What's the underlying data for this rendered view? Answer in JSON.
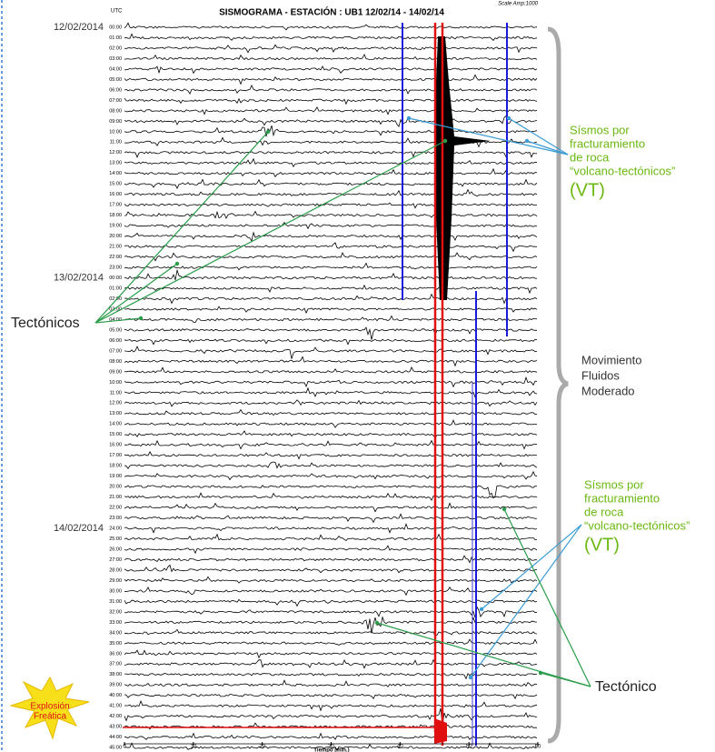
{
  "header": {
    "title": "SISMOGRAMA - ESTACIÓN : UB1 12/02/14 - 14/02/14",
    "scale": "Scale Amp:1000",
    "utc": "UTC"
  },
  "dates": [
    "12/02/2014",
    "13/02/2014",
    "14/02/2014"
  ],
  "rows": [
    "00:00",
    "01:00",
    "02:00",
    "03:00",
    "04:00",
    "05:00",
    "06:00",
    "07:00",
    "08:00",
    "09:00",
    "10:00",
    "11:00",
    "12:00",
    "13:00",
    "14:00",
    "15:00",
    "16:00",
    "17:00",
    "18:00",
    "19:00",
    "20:00",
    "21:00",
    "22:00",
    "23:00",
    "00:00",
    "01:00",
    "02:00",
    "03:00",
    "04:00",
    "05:00",
    "06:00",
    "07:00",
    "08:00",
    "09:00",
    "10:00",
    "11:00",
    "12:00",
    "13:00",
    "14:00",
    "15:00",
    "16:00",
    "17:00",
    "18:00",
    "19:00",
    "20:00",
    "21:00",
    "22:00",
    "23:00",
    "24:00",
    "25:00",
    "26:00",
    "27:00",
    "28:00",
    "29:00",
    "30:00",
    "31:00",
    "32:00",
    "33:00",
    "34:00",
    "35:00",
    "36:00",
    "37:00",
    "38:00",
    "39:00",
    "40:00",
    "41:00",
    "42:00",
    "43:00",
    "44:00",
    "45:00"
  ],
  "x_ticks": [
    0,
    10,
    20,
    30,
    40,
    50,
    60
  ],
  "x_label": "Tiempo (min.)",
  "annotations": {
    "vt_upper": [
      "Sísmos por",
      "fracturamiento",
      "de roca",
      "“volcano-tectónicos”",
      "(VT)"
    ],
    "vt_lower": [
      "Sísmos por",
      "fracturamiento",
      "de roca",
      "“volcano-tectónicos”",
      "(VT)"
    ],
    "tectonicos": "Tectónicos",
    "fluidos": [
      "Movimiento",
      "Fluidos",
      "Moderado"
    ],
    "tectonico": "Tectónico",
    "explosion": [
      "Explosión",
      "Freática"
    ]
  }
}
